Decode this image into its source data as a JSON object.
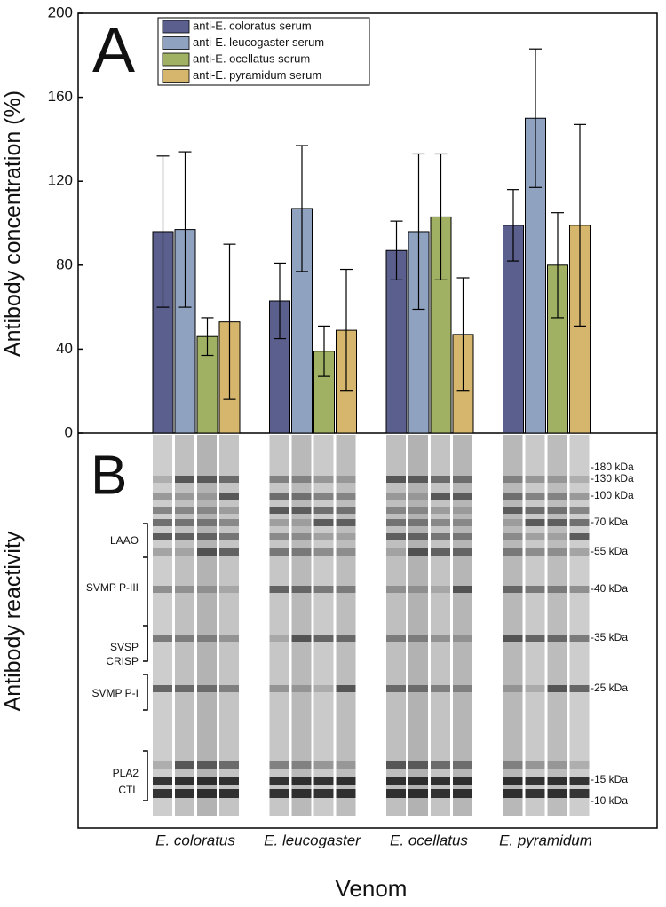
{
  "chart_data": {
    "type": "bar",
    "panel_label": "A",
    "y_label": "Antibody concentration (%)",
    "x_label": "Venom",
    "categories": [
      "E. coloratus",
      "E. leucogaster",
      "E. ocellatus",
      "E. pyramidum"
    ],
    "series": [
      {
        "name": "anti-E. coloratus serum",
        "color": "#5b5f8d",
        "values": [
          96,
          63,
          87,
          99
        ],
        "errors": [
          36,
          18,
          14,
          17
        ]
      },
      {
        "name": "anti-E. leucogaster serum",
        "color": "#8fa3c0",
        "values": [
          97,
          107,
          96,
          150
        ],
        "errors": [
          37,
          30,
          37,
          33
        ]
      },
      {
        "name": "anti-E. ocellatus serum",
        "color": "#a0b163",
        "values": [
          46,
          39,
          103,
          80
        ],
        "errors": [
          9,
          12,
          30,
          25
        ]
      },
      {
        "name": "anti-E. pyramidum serum",
        "color": "#d5b66c",
        "values": [
          53,
          49,
          47,
          99
        ],
        "errors": [
          37,
          29,
          27,
          48
        ]
      }
    ],
    "ylim": [
      0,
      200
    ],
    "yticks": [
      0,
      40,
      80,
      120,
      160,
      200
    ],
    "legend": "top-left"
  },
  "blot": {
    "panel_label": "B",
    "y_label": "Antibody reactivity",
    "protein_labels": [
      "LAAO",
      "SVMP P-III",
      "SVSP",
      "CRISP",
      "SVMP P-I",
      "PLA2",
      "CTL"
    ],
    "markers": [
      "-180 kDa",
      "-130 kDa",
      "-100 kDa",
      "-70 kDa",
      "-55 kDa",
      "-40 kDa",
      "-35 kDa",
      "-25 kDa",
      "-15 kDa",
      "-10 kDa"
    ]
  }
}
